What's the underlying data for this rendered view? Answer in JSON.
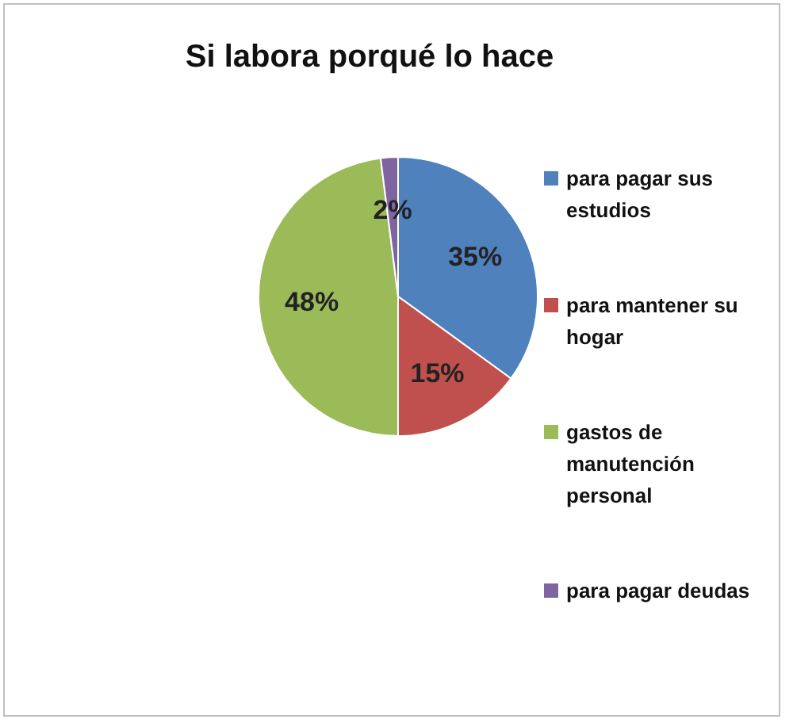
{
  "chart_data": {
    "type": "pie",
    "title": "Si labora porqué lo hace",
    "categories": [
      "para pagar sus estudios",
      "para mantener su hogar",
      "gastos de manutención personal",
      "para pagar deudas"
    ],
    "values": [
      35,
      15,
      48,
      2
    ],
    "colors": [
      "#4f81bd",
      "#c0504d",
      "#9bbb59",
      "#8064a2"
    ],
    "value_labels": [
      "35%",
      "15%",
      "48%",
      "2%"
    ],
    "legend": "right"
  }
}
